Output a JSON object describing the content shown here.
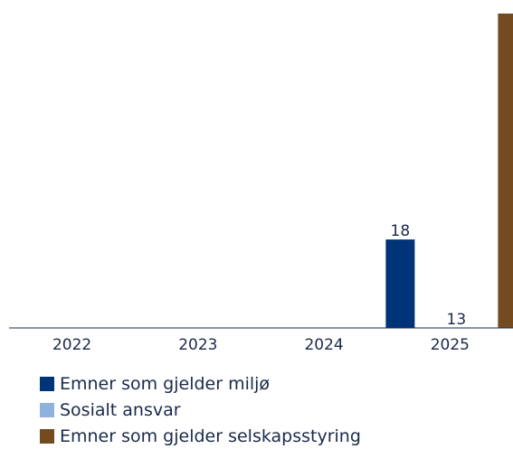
{
  "chart_data": {
    "type": "bar",
    "title": "",
    "xlabel": "",
    "ylabel": "",
    "categories": [
      "2022",
      "2023",
      "2024",
      "2025"
    ],
    "series": [
      {
        "name": "Emner som gjelder miljø",
        "color": "#003478",
        "values": [
          null,
          null,
          null,
          18
        ]
      },
      {
        "name": "Sosialt ansvar",
        "color": "#8fb1de",
        "values": [
          null,
          null,
          null,
          13
        ]
      },
      {
        "name": "Emner som gjelder selskapsstyring",
        "color": "#744b1f",
        "values": [
          null,
          null,
          null,
          null
        ]
      }
    ],
    "ylim": [
      0,
      18
    ],
    "grid": false,
    "legend": "bottom-left"
  }
}
